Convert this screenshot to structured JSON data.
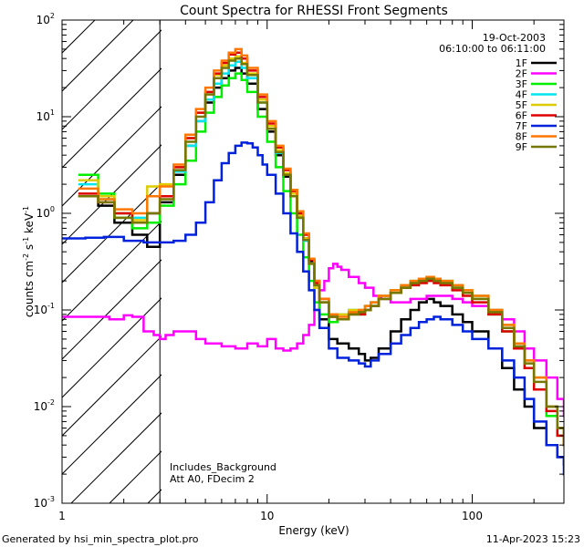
{
  "chart_data": {
    "type": "line",
    "title": "Count Spectra for RHESSI Front Segments",
    "xlabel": "Energy (keV)",
    "ylabel_parts": [
      "counts cm",
      "-2",
      " s",
      "-1",
      " keV",
      "-1"
    ],
    "xscale": "log",
    "yscale": "log",
    "xlim": [
      1,
      280
    ],
    "ylim": [
      0.001,
      100
    ],
    "x_ticks": [
      {
        "value": 1,
        "label": "1"
      },
      {
        "value": 10,
        "label": "10"
      },
      {
        "value": 100,
        "label": "100"
      }
    ],
    "y_ticks": [
      {
        "value": 0.001,
        "base": "10",
        "exp": "-3"
      },
      {
        "value": 0.01,
        "base": "10",
        "exp": "-2"
      },
      {
        "value": 0.1,
        "base": "10",
        "exp": "-1"
      },
      {
        "value": 1,
        "base": "10",
        "exp": "0"
      },
      {
        "value": 10,
        "base": "10",
        "exp": "1"
      },
      {
        "value": 100,
        "base": "10",
        "exp": "2"
      }
    ],
    "shaded_region": {
      "x_from": 1,
      "x_to": 3,
      "pattern": "diagonal hatch"
    },
    "date": "19-Oct-2003",
    "time_range": "06:10:00 to 06:11:00",
    "annotations": [
      "Includes_Background",
      "Att A0, FDecim 2"
    ],
    "footer_left": "Generated by hsi_min_spectra_plot.pro",
    "footer_right": "11-Apr-2023 15:23",
    "series": [
      {
        "name": "1F",
        "color": "#000000",
        "energy": [
          1.2,
          1.5,
          1.8,
          2.2,
          2.6,
          3.0,
          3.5,
          4.0,
          4.5,
          5.0,
          5.5,
          6.0,
          6.5,
          7.0,
          7.5,
          8.0,
          9.0,
          10,
          11,
          12,
          13,
          14,
          15,
          16,
          17,
          18,
          20,
          22,
          25,
          28,
          30,
          32,
          35,
          40,
          45,
          50,
          55,
          60,
          65,
          70,
          80,
          90,
          100,
          120,
          140,
          160,
          180,
          200,
          230,
          260,
          280
        ],
        "counts": [
          1.5,
          1.2,
          0.8,
          0.6,
          0.45,
          1.3,
          2.5,
          5,
          9,
          14,
          20,
          25,
          30,
          32,
          28,
          22,
          12,
          7,
          4,
          2.4,
          1.5,
          0.9,
          0.55,
          0.32,
          0.2,
          0.08,
          0.05,
          0.045,
          0.04,
          0.035,
          0.03,
          0.032,
          0.04,
          0.06,
          0.08,
          0.1,
          0.12,
          0.13,
          0.12,
          0.11,
          0.09,
          0.075,
          0.06,
          0.04,
          0.025,
          0.015,
          0.01,
          0.006,
          0.004,
          0.003,
          0.0025
        ]
      },
      {
        "name": "2F",
        "color": "#ff00ff",
        "energy": [
          1.0,
          1.5,
          1.7,
          2.0,
          2.2,
          2.5,
          2.8,
          3.0,
          3.2,
          3.5,
          4.0,
          4.5,
          5.0,
          6.0,
          7.0,
          8.0,
          9.0,
          10,
          11,
          12,
          13,
          14,
          15,
          16,
          17,
          18,
          19,
          20,
          21,
          22,
          23,
          25,
          28,
          30,
          33,
          36,
          40,
          45,
          50,
          60,
          70,
          80,
          90,
          100,
          120,
          140,
          160,
          180,
          200,
          230,
          260,
          280
        ],
        "counts": [
          0.085,
          0.085,
          0.08,
          0.088,
          0.085,
          0.06,
          0.055,
          0.05,
          0.055,
          0.06,
          0.06,
          0.05,
          0.045,
          0.042,
          0.04,
          0.045,
          0.042,
          0.05,
          0.04,
          0.038,
          0.04,
          0.045,
          0.055,
          0.07,
          0.1,
          0.16,
          0.2,
          0.27,
          0.3,
          0.28,
          0.26,
          0.22,
          0.19,
          0.17,
          0.14,
          0.13,
          0.12,
          0.12,
          0.13,
          0.14,
          0.14,
          0.13,
          0.12,
          0.11,
          0.1,
          0.08,
          0.06,
          0.04,
          0.03,
          0.02,
          0.012,
          0.008
        ]
      },
      {
        "name": "3F",
        "color": "#00ee00",
        "energy": [
          1.2,
          1.5,
          1.8,
          2.2,
          2.6,
          3.0,
          3.5,
          4.0,
          4.5,
          5.0,
          5.5,
          6.0,
          6.5,
          7.0,
          7.5,
          8.0,
          9.0,
          10,
          11,
          12,
          13,
          14,
          15,
          16,
          17,
          18,
          20,
          22,
          25,
          28,
          30,
          32,
          35,
          40,
          45,
          50,
          55,
          60,
          65,
          70,
          80,
          90,
          100,
          120,
          140,
          160,
          180,
          200,
          230,
          260,
          280
        ],
        "counts": [
          2.5,
          1.6,
          0.9,
          0.7,
          0.8,
          1.2,
          2.0,
          3.5,
          7,
          11,
          16,
          21,
          25,
          28,
          24,
          18,
          10,
          5.5,
          3,
          1.7,
          1.0,
          0.6,
          0.35,
          0.2,
          0.12,
          0.09,
          0.075,
          0.08,
          0.09,
          0.09,
          0.1,
          0.11,
          0.13,
          0.15,
          0.17,
          0.19,
          0.2,
          0.21,
          0.2,
          0.19,
          0.17,
          0.15,
          0.13,
          0.09,
          0.06,
          0.04,
          0.025,
          0.015,
          0.008,
          0.005,
          0.004
        ]
      },
      {
        "name": "4F",
        "color": "#00e5ee",
        "energy": [
          1.2,
          1.5,
          1.8,
          2.2,
          2.6,
          3.0,
          3.5,
          4.0,
          4.5,
          5.0,
          5.5,
          6.0,
          6.5,
          7.0,
          7.5,
          8.0,
          9.0,
          10,
          11,
          12,
          13,
          14,
          15,
          16,
          17,
          18,
          20,
          22,
          25,
          28,
          30,
          32,
          35,
          40,
          45,
          50,
          55,
          60,
          65,
          70,
          80,
          90,
          100,
          120,
          140,
          160,
          180,
          200,
          230,
          260,
          280
        ],
        "counts": [
          2.0,
          1.4,
          1.0,
          0.9,
          1.0,
          1.5,
          2.7,
          5,
          9,
          15,
          22,
          28,
          34,
          37,
          32,
          25,
          14,
          7.5,
          4.2,
          2.5,
          1.5,
          0.9,
          0.52,
          0.3,
          0.17,
          0.12,
          0.09,
          0.09,
          0.1,
          0.1,
          0.11,
          0.12,
          0.14,
          0.16,
          0.18,
          0.2,
          0.21,
          0.22,
          0.21,
          0.2,
          0.18,
          0.16,
          0.14,
          0.1,
          0.07,
          0.045,
          0.03,
          0.02,
          0.01,
          0.006,
          0.004
        ]
      },
      {
        "name": "5F",
        "color": "#ddcc00",
        "energy": [
          1.2,
          1.5,
          1.8,
          2.2,
          2.6,
          3.0,
          3.5,
          4.0,
          4.5,
          5.0,
          5.5,
          6.0,
          6.5,
          7.0,
          7.5,
          8.0,
          9.0,
          10,
          11,
          12,
          13,
          14,
          15,
          16,
          17,
          18,
          20,
          22,
          25,
          28,
          30,
          32,
          35,
          40,
          45,
          50,
          55,
          60,
          65,
          70,
          80,
          90,
          100,
          120,
          140,
          160,
          180,
          200,
          230,
          260,
          280
        ],
        "counts": [
          2.2,
          1.5,
          1.0,
          0.85,
          1.9,
          2.0,
          3.0,
          6,
          11,
          18,
          27,
          34,
          40,
          42,
          36,
          28,
          15,
          8,
          4.5,
          2.6,
          1.6,
          0.95,
          0.55,
          0.3,
          0.17,
          0.12,
          0.09,
          0.09,
          0.1,
          0.1,
          0.11,
          0.12,
          0.14,
          0.16,
          0.18,
          0.2,
          0.21,
          0.22,
          0.21,
          0.2,
          0.18,
          0.16,
          0.14,
          0.1,
          0.07,
          0.045,
          0.03,
          0.02,
          0.01,
          0.006,
          0.004
        ]
      },
      {
        "name": "6F",
        "color": "#dd0000",
        "energy": [
          1.2,
          1.5,
          1.8,
          2.2,
          2.6,
          3.0,
          3.5,
          4.0,
          4.5,
          5.0,
          5.5,
          6.0,
          6.5,
          7.0,
          7.5,
          8.0,
          9.0,
          10,
          11,
          12,
          13,
          14,
          15,
          16,
          17,
          18,
          20,
          22,
          25,
          28,
          30,
          32,
          35,
          40,
          45,
          50,
          55,
          60,
          65,
          70,
          80,
          90,
          100,
          120,
          140,
          160,
          180,
          200,
          230,
          260,
          280
        ],
        "counts": [
          1.6,
          1.3,
          1.0,
          0.8,
          1.0,
          1.5,
          3.0,
          6,
          11,
          18,
          28,
          36,
          44,
          46,
          40,
          30,
          16,
          8.5,
          4.8,
          2.8,
          1.7,
          1.0,
          0.6,
          0.33,
          0.19,
          0.13,
          0.085,
          0.08,
          0.09,
          0.09,
          0.1,
          0.11,
          0.13,
          0.15,
          0.17,
          0.18,
          0.19,
          0.2,
          0.19,
          0.18,
          0.16,
          0.14,
          0.12,
          0.09,
          0.06,
          0.04,
          0.025,
          0.015,
          0.009,
          0.005,
          0.004
        ]
      },
      {
        "name": "7F",
        "color": "#0022dd",
        "energy": [
          1.0,
          1.3,
          1.6,
          2.0,
          2.5,
          3.0,
          3.5,
          4.0,
          4.5,
          5.0,
          5.5,
          6.0,
          6.5,
          7.0,
          7.5,
          8.0,
          8.5,
          9.0,
          9.5,
          10,
          11,
          12,
          13,
          14,
          15,
          16,
          17,
          18,
          20,
          22,
          25,
          28,
          30,
          32,
          35,
          40,
          45,
          50,
          55,
          60,
          65,
          70,
          80,
          90,
          100,
          120,
          140,
          160,
          180,
          200,
          230,
          260,
          280
        ],
        "counts": [
          0.55,
          0.56,
          0.57,
          0.52,
          0.5,
          0.5,
          0.52,
          0.6,
          0.8,
          1.3,
          2.2,
          3.3,
          4.2,
          5.0,
          5.4,
          5.3,
          4.8,
          4.0,
          3.2,
          2.5,
          1.6,
          1.0,
          0.62,
          0.4,
          0.25,
          0.16,
          0.1,
          0.065,
          0.04,
          0.032,
          0.03,
          0.028,
          0.026,
          0.03,
          0.035,
          0.045,
          0.055,
          0.065,
          0.075,
          0.08,
          0.085,
          0.08,
          0.07,
          0.06,
          0.05,
          0.04,
          0.03,
          0.02,
          0.012,
          0.007,
          0.004,
          0.003,
          0.002
        ]
      },
      {
        "name": "8F",
        "color": "#ff7700",
        "energy": [
          1.2,
          1.5,
          1.8,
          2.2,
          2.6,
          3.0,
          3.5,
          4.0,
          4.5,
          5.0,
          5.5,
          6.0,
          6.5,
          7.0,
          7.5,
          8.0,
          9.0,
          10,
          11,
          12,
          13,
          14,
          15,
          16,
          17,
          18,
          20,
          22,
          25,
          28,
          30,
          32,
          35,
          40,
          45,
          50,
          55,
          60,
          65,
          70,
          80,
          90,
          100,
          120,
          140,
          160,
          180,
          200,
          230,
          260,
          280
        ],
        "counts": [
          1.8,
          1.4,
          1.1,
          1.0,
          1.5,
          1.9,
          3.2,
          6.5,
          12,
          20,
          30,
          38,
          46,
          50,
          43,
          32,
          17,
          9,
          5,
          2.9,
          1.75,
          1.05,
          0.62,
          0.34,
          0.2,
          0.13,
          0.09,
          0.085,
          0.095,
          0.1,
          0.11,
          0.12,
          0.14,
          0.16,
          0.18,
          0.2,
          0.21,
          0.22,
          0.21,
          0.2,
          0.18,
          0.16,
          0.14,
          0.1,
          0.07,
          0.045,
          0.03,
          0.02,
          0.01,
          0.006,
          0.004
        ]
      },
      {
        "name": "9F",
        "color": "#777700",
        "energy": [
          1.2,
          1.5,
          1.8,
          2.2,
          2.6,
          3.0,
          3.5,
          4.0,
          4.5,
          5.0,
          5.5,
          6.0,
          6.5,
          7.0,
          7.5,
          8.0,
          9.0,
          10,
          11,
          12,
          13,
          14,
          15,
          16,
          17,
          18,
          20,
          22,
          25,
          28,
          30,
          32,
          35,
          40,
          45,
          50,
          55,
          60,
          65,
          70,
          80,
          90,
          100,
          120,
          140,
          160,
          180,
          200,
          230,
          260,
          280
        ],
        "counts": [
          1.5,
          1.3,
          0.9,
          0.8,
          1.0,
          1.4,
          2.8,
          5.5,
          10,
          17,
          25,
          32,
          38,
          40,
          35,
          27,
          14,
          7.5,
          4.3,
          2.5,
          1.5,
          0.9,
          0.53,
          0.3,
          0.18,
          0.12,
          0.085,
          0.08,
          0.09,
          0.095,
          0.1,
          0.11,
          0.13,
          0.15,
          0.17,
          0.19,
          0.2,
          0.21,
          0.2,
          0.19,
          0.17,
          0.15,
          0.13,
          0.095,
          0.065,
          0.042,
          0.028,
          0.018,
          0.01,
          0.006,
          0.004
        ]
      }
    ]
  }
}
